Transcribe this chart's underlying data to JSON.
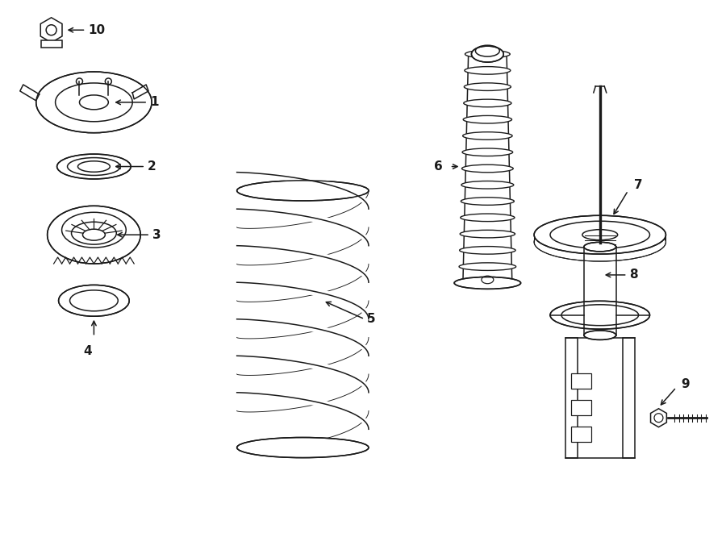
{
  "bg_color": "#ffffff",
  "line_color": "#1a1a1a",
  "lw": 1.1,
  "fig_w": 9.0,
  "fig_h": 6.61,
  "xlim": [
    0,
    9.0
  ],
  "ylim": [
    0,
    6.61
  ]
}
